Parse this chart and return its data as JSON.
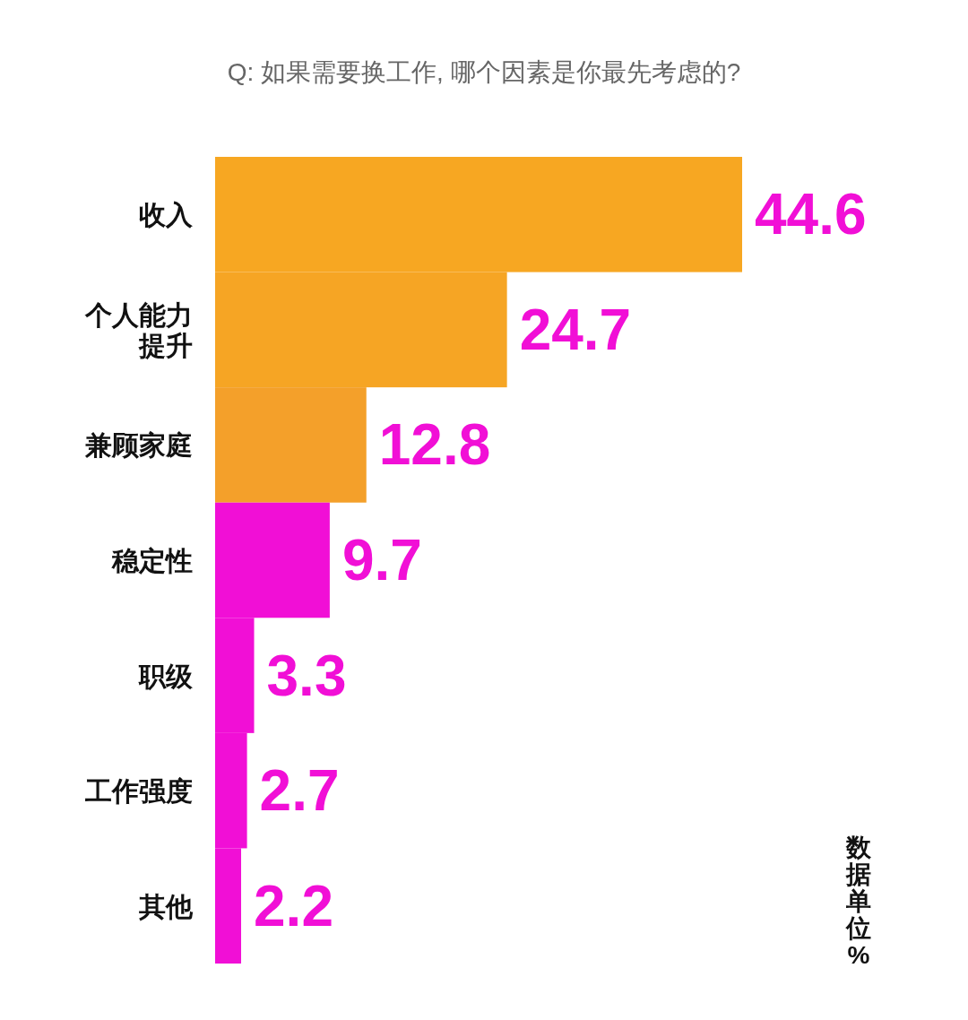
{
  "chart_data": {
    "type": "bar",
    "orientation": "horizontal",
    "title": "Q: 如果需要换工作, 哪个因素是你最先考虑的?",
    "categories": [
      "收入",
      "个人能力提升",
      "兼顾家庭",
      "稳定性",
      "职级",
      "工作强度",
      "其他"
    ],
    "values": [
      44.6,
      24.7,
      12.8,
      9.7,
      3.3,
      2.7,
      2.2
    ],
    "colors": [
      "#f7a722",
      "#f6a524",
      "#f4a02a",
      "#f10fd6",
      "#f10fd6",
      "#f10fd6",
      "#f10fd6"
    ],
    "data_labels": true,
    "annotations": [
      "数据单位%"
    ]
  }
}
